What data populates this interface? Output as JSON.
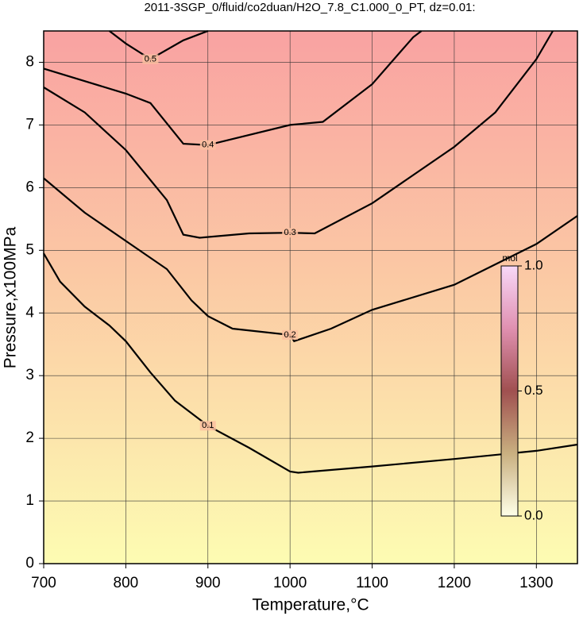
{
  "chart_data": {
    "type": "contour",
    "title": "2011-3SGP_0/fluid/co2duan/H2O_7.8_C1.000_0_PT, dz=0.01:",
    "x_label": "Temperature,°C",
    "y_label": "Pressure,x100MPa",
    "xlim": [
      700,
      1350
    ],
    "ylim": [
      0,
      8.5
    ],
    "xticks": [
      700,
      800,
      900,
      1000,
      1100,
      1200,
      1300
    ],
    "yticks": [
      0,
      1,
      2,
      3,
      4,
      5,
      6,
      7,
      8
    ],
    "grid": true,
    "contours": [
      {
        "level": 0.1,
        "x": [
          700,
          720,
          750,
          780,
          800,
          830,
          860,
          900,
          950,
          1000,
          1010,
          1100,
          1200,
          1300,
          1350
        ],
        "y": [
          4.95,
          4.5,
          4.1,
          3.8,
          3.55,
          3.05,
          2.6,
          2.2,
          1.85,
          1.47,
          1.45,
          1.55,
          1.67,
          1.8,
          1.9
        ]
      },
      {
        "level": 0.2,
        "x": [
          700,
          750,
          800,
          850,
          880,
          900,
          930,
          1000,
          1005,
          1050,
          1100,
          1200,
          1300,
          1350
        ],
        "y": [
          6.15,
          5.6,
          5.15,
          4.7,
          4.2,
          3.95,
          3.75,
          3.65,
          3.55,
          3.75,
          4.05,
          4.45,
          5.1,
          5.55
        ]
      },
      {
        "level": 0.3,
        "x": [
          700,
          750,
          800,
          850,
          870,
          890,
          950,
          1000,
          1030,
          1100,
          1200,
          1250,
          1300,
          1320
        ],
        "y": [
          7.6,
          7.2,
          6.6,
          5.8,
          5.25,
          5.2,
          5.27,
          5.28,
          5.27,
          5.75,
          6.65,
          7.2,
          8.05,
          8.5
        ]
      },
      {
        "level": 0.4,
        "x": [
          700,
          750,
          800,
          830,
          870,
          900,
          1000,
          1040,
          1100,
          1150,
          1160
        ],
        "y": [
          7.9,
          7.7,
          7.5,
          7.35,
          6.7,
          6.68,
          7.0,
          7.05,
          7.65,
          8.4,
          8.5
        ]
      },
      {
        "level": 0.5,
        "x": [
          780,
          800,
          830,
          870,
          900
        ],
        "y": [
          8.5,
          8.3,
          8.05,
          8.35,
          8.5
        ]
      }
    ],
    "colorbar": {
      "label": "mol",
      "lim": [
        0,
        1
      ],
      "ticks": [
        {
          "value": 0,
          "label": "0.0"
        },
        {
          "value": 0.5,
          "label": "0.5"
        },
        {
          "value": 1,
          "label": "1.0"
        }
      ]
    }
  }
}
